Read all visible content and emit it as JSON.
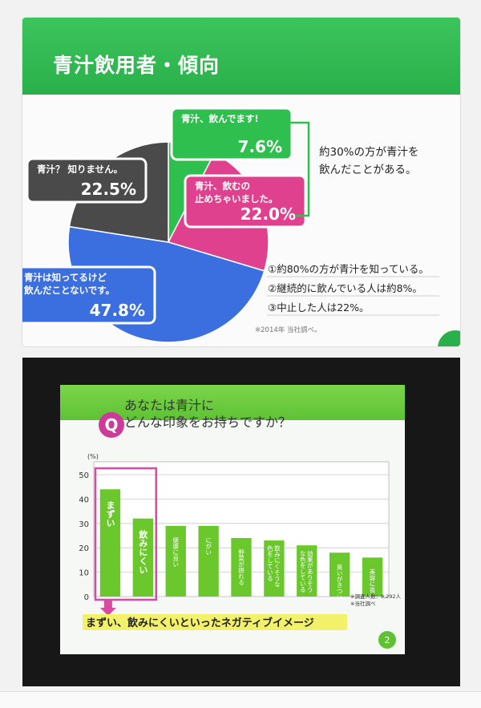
{
  "slide1": {
    "title": "青汁飲用者・傾向",
    "summary": "約30%の方が青汁を 飲んだことがある。",
    "points": [
      "①約80%の方が青汁を知っている。",
      "②継続的に飲んでいる人は約8%。",
      "③中止した人は22%。"
    ],
    "footnote": "※2014年 当社調べ。"
  },
  "slide2": {
    "q_badge": "Q",
    "title_line1": "あなたは青汁に",
    "title_line2": "どんな印象をお持ちですか？",
    "callout": "まずい、飲みにくいといったネガティブイメージ",
    "footnote1": "※調査人数：9,292人",
    "footnote2": "※当社調べ",
    "page_number": "2"
  },
  "chart_data": [
    {
      "type": "pie",
      "slices": [
        {
          "label": "青汁、飲んでます!",
          "value": 7.6,
          "value_label": "7.6%",
          "color": "#2fbf4f"
        },
        {
          "label": "青汁、飲むの止めちゃいました。",
          "value": 22.0,
          "value_label": "22.0%",
          "color": "#e0418e"
        },
        {
          "label": "青汁は知ってるけど飲んだことないです。",
          "value": 47.8,
          "value_label": "47.8%",
          "color": "#3b6fe0"
        },
        {
          "label": "青汁？ 知りません。",
          "value": 22.5,
          "value_label": "22.5%",
          "color": "#4a4a4a"
        }
      ]
    },
    {
      "type": "bar",
      "ylabel": "(%)",
      "ylim": [
        0,
        50
      ],
      "yticks": [
        "0",
        "10",
        "20",
        "30",
        "40",
        "50"
      ],
      "categories": [
        "まずい",
        "飲みにくい",
        "健康に良い",
        "にがい",
        "野菜が摂れる",
        "飲みにくそうな色をしている",
        "効果がありそうな色をしている",
        "臭いがきつい",
        "美容に良い"
      ],
      "values": [
        44,
        32,
        29,
        29,
        24,
        23,
        21,
        18,
        16
      ],
      "color": "#6ac72c",
      "highlight_color": "#d94aa3"
    }
  ]
}
